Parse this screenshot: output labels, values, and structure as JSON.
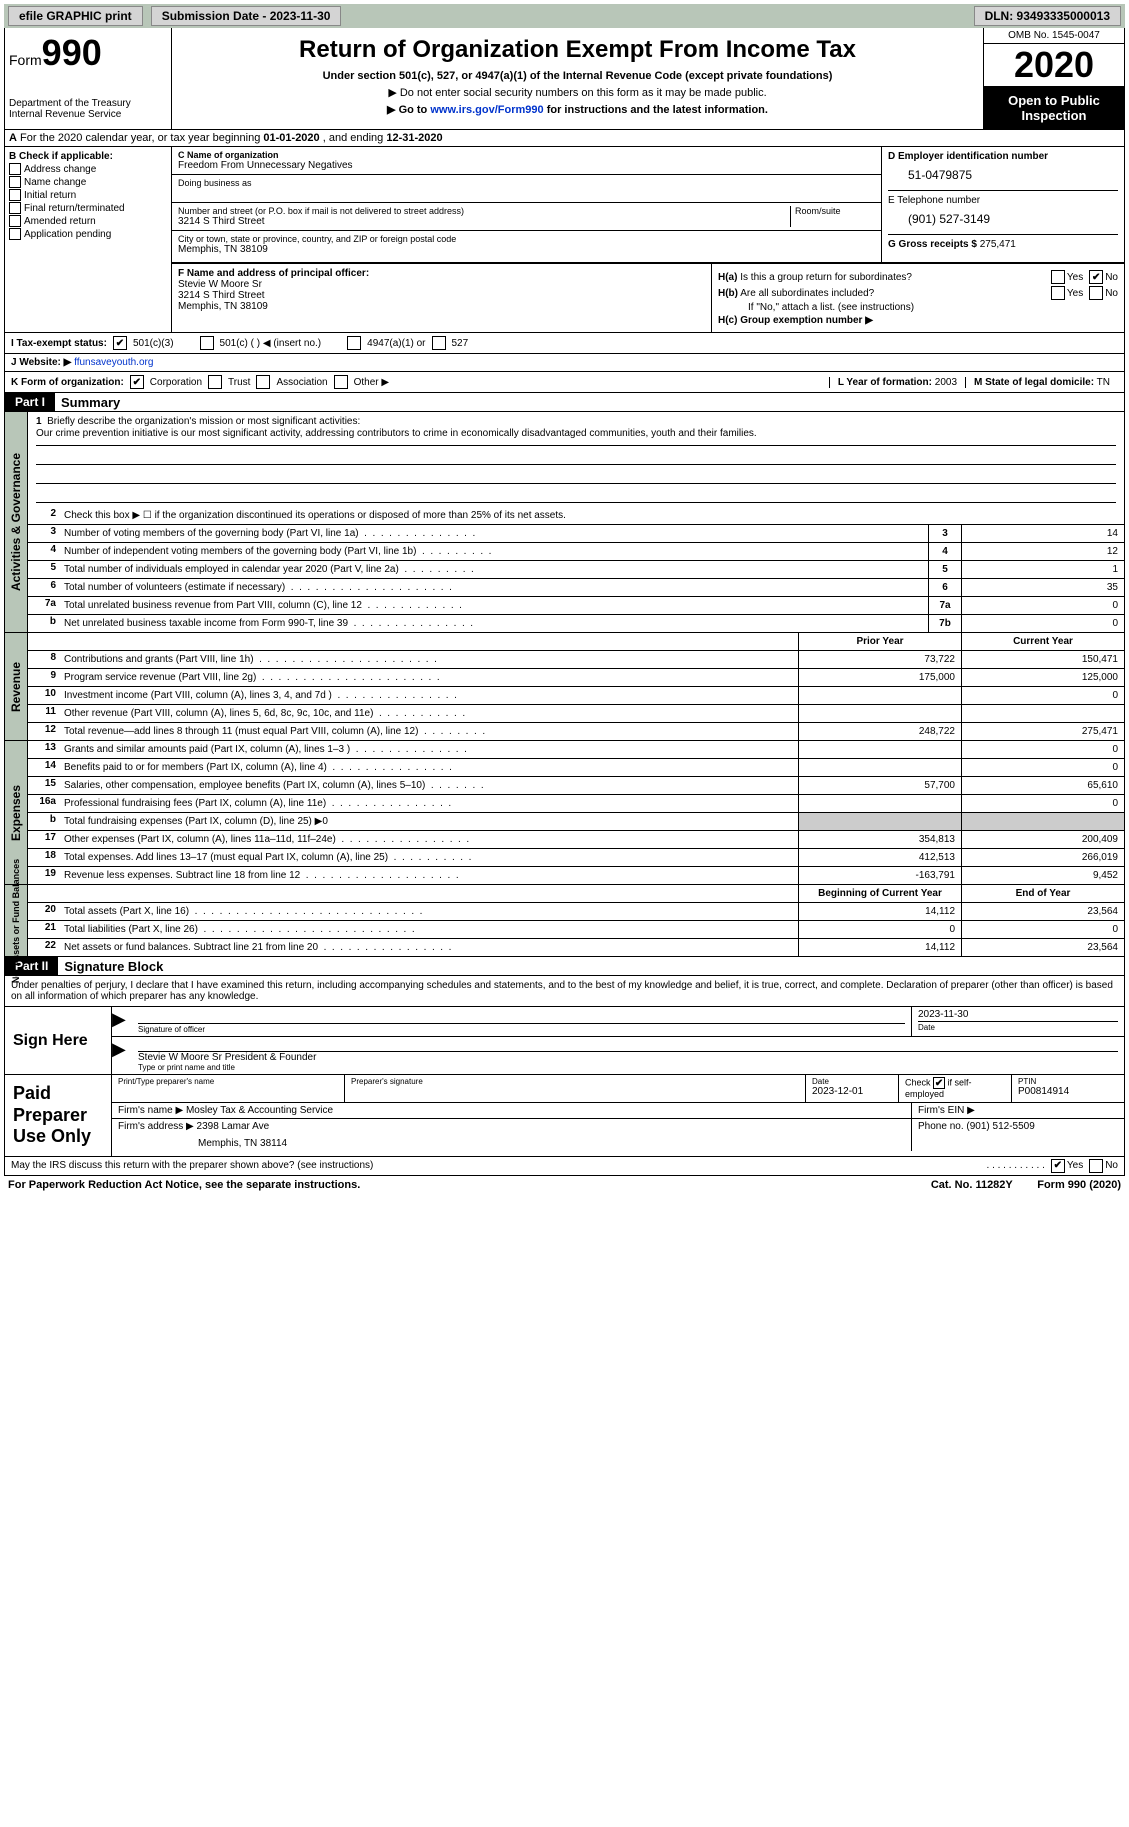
{
  "topbar": {
    "efile": "efile GRAPHIC print",
    "sub_date_label": "Submission Date - 2023-11-30",
    "dln": "DLN: 93493335000013"
  },
  "header": {
    "form_label": "Form",
    "form_num": "990",
    "dept1": "Department of the Treasury",
    "dept2": "Internal Revenue Service",
    "title": "Return of Organization Exempt From Income Tax",
    "sub": "Under section 501(c), 527, or 4947(a)(1) of the Internal Revenue Code (except private foundations)",
    "note1": "▶ Do not enter social security numbers on this form as it may be made public.",
    "note2_pre": "▶ Go to ",
    "note2_link": "www.irs.gov/Form990",
    "note2_post": " for instructions and the latest information.",
    "omb": "OMB No. 1545-0047",
    "year": "2020",
    "open": "Open to Public Inspection"
  },
  "line_a": {
    "pre": "A For the 2020 calendar year, or tax year beginning ",
    "start": "01-01-2020",
    "mid": " , and ending ",
    "end": "12-31-2020"
  },
  "b": {
    "label": "B Check if applicable:",
    "opts": [
      "Address change",
      "Name change",
      "Initial return",
      "Final return/terminated",
      "Amended return",
      "Application pending"
    ]
  },
  "c": {
    "name_label": "C Name of organization",
    "name": "Freedom From Unnecessary Negatives",
    "dba_label": "Doing business as",
    "addr_label": "Number and street (or P.O. box if mail is not delivered to street address)",
    "room_label": "Room/suite",
    "addr": "3214 S Third Street",
    "city_label": "City or town, state or province, country, and ZIP or foreign postal code",
    "city": "Memphis, TN  38109"
  },
  "d": {
    "ein_label": "D Employer identification number",
    "ein": "51-0479875",
    "tel_label": "E Telephone number",
    "tel": "(901) 527-3149",
    "gross_label": "G Gross receipts $",
    "gross": "275,471"
  },
  "f": {
    "label": "F Name and address of principal officer:",
    "name": "Stevie W Moore Sr",
    "addr1": "3214 S Third Street",
    "addr2": "Memphis, TN  38109"
  },
  "h": {
    "a_label": "H(a) Is this a group return for subordinates?",
    "b_label": "H(b) Are all subordinates included?",
    "b_note": "If \"No,\" attach a list. (see instructions)",
    "c_label": "H(c) Group exemption number ▶",
    "yes": "Yes",
    "no": "No"
  },
  "i": {
    "label": "I    Tax-exempt status:",
    "o1": "501(c)(3)",
    "o2": "501(c) (  ) ◀ (insert no.)",
    "o3": "4947(a)(1) or",
    "o4": "527"
  },
  "j": {
    "label": "J   Website: ▶",
    "val": "ffunsaveyouth.org"
  },
  "k": {
    "label": "K Form of organization:",
    "o1": "Corporation",
    "o2": "Trust",
    "o3": "Association",
    "o4": "Other ▶"
  },
  "l": {
    "label": "L Year of formation:",
    "val": "2003"
  },
  "m": {
    "label": "M State of legal domicile:",
    "val": "TN"
  },
  "parts": {
    "p1": "Part I",
    "p1t": "Summary",
    "p2": "Part II",
    "p2t": "Signature Block"
  },
  "mission": {
    "label": "1   Briefly describe the organization's mission or most significant activities:",
    "text": "Our crime prevention initiative is our most significant activity, addressing contributors to crime in economically disadvantaged communities, youth and their families."
  },
  "gov": {
    "l2": "Check this box ▶ ☐ if the organization discontinued its operations or disposed of more than 25% of its net assets.",
    "rows": [
      {
        "n": "3",
        "d": "Number of voting members of the governing body (Part VI, line 1a)",
        "b": "3",
        "v": "14"
      },
      {
        "n": "4",
        "d": "Number of independent voting members of the governing body (Part VI, line 1b)",
        "b": "4",
        "v": "12"
      },
      {
        "n": "5",
        "d": "Total number of individuals employed in calendar year 2020 (Part V, line 2a)",
        "b": "5",
        "v": "1"
      },
      {
        "n": "6",
        "d": "Total number of volunteers (estimate if necessary)",
        "b": "6",
        "v": "35"
      },
      {
        "n": "7a",
        "d": "Total unrelated business revenue from Part VIII, column (C), line 12",
        "b": "7a",
        "v": "0"
      },
      {
        "n": "b",
        "d": "Net unrelated business taxable income from Form 990-T, line 39",
        "b": "7b",
        "v": "0"
      }
    ]
  },
  "rev": {
    "hdr_prior": "Prior Year",
    "hdr_curr": "Current Year",
    "rows": [
      {
        "n": "8",
        "d": "Contributions and grants (Part VIII, line 1h)",
        "p": "73,722",
        "c": "150,471"
      },
      {
        "n": "9",
        "d": "Program service revenue (Part VIII, line 2g)",
        "p": "175,000",
        "c": "125,000"
      },
      {
        "n": "10",
        "d": "Investment income (Part VIII, column (A), lines 3, 4, and 7d )",
        "p": "",
        "c": "0"
      },
      {
        "n": "11",
        "d": "Other revenue (Part VIII, column (A), lines 5, 6d, 8c, 9c, 10c, and 11e)",
        "p": "",
        "c": ""
      },
      {
        "n": "12",
        "d": "Total revenue—add lines 8 through 11 (must equal Part VIII, column (A), line 12)",
        "p": "248,722",
        "c": "275,471"
      }
    ]
  },
  "exp": {
    "rows": [
      {
        "n": "13",
        "d": "Grants and similar amounts paid (Part IX, column (A), lines 1–3 )",
        "p": "",
        "c": "0"
      },
      {
        "n": "14",
        "d": "Benefits paid to or for members (Part IX, column (A), line 4)",
        "p": "",
        "c": "0"
      },
      {
        "n": "15",
        "d": "Salaries, other compensation, employee benefits (Part IX, column (A), lines 5–10)",
        "p": "57,700",
        "c": "65,610"
      },
      {
        "n": "16a",
        "d": "Professional fundraising fees (Part IX, column (A), line 11e)",
        "p": "",
        "c": "0"
      },
      {
        "n": "b",
        "d": "Total fundraising expenses (Part IX, column (D), line 25) ▶0",
        "p": "",
        "c": "",
        "shaded": true
      },
      {
        "n": "17",
        "d": "Other expenses (Part IX, column (A), lines 11a–11d, 11f–24e)",
        "p": "354,813",
        "c": "200,409"
      },
      {
        "n": "18",
        "d": "Total expenses. Add lines 13–17 (must equal Part IX, column (A), line 25)",
        "p": "412,513",
        "c": "266,019"
      },
      {
        "n": "19",
        "d": "Revenue less expenses. Subtract line 18 from line 12",
        "p": "-163,791",
        "c": "9,452"
      }
    ]
  },
  "net": {
    "hdr_beg": "Beginning of Current Year",
    "hdr_end": "End of Year",
    "rows": [
      {
        "n": "20",
        "d": "Total assets (Part X, line 16)",
        "p": "14,112",
        "c": "23,564"
      },
      {
        "n": "21",
        "d": "Total liabilities (Part X, line 26)",
        "p": "0",
        "c": "0"
      },
      {
        "n": "22",
        "d": "Net assets or fund balances. Subtract line 21 from line 20",
        "p": "14,112",
        "c": "23,564"
      }
    ]
  },
  "sides": {
    "gov": "Activities & Governance",
    "rev": "Revenue",
    "exp": "Expenses",
    "net": "Net Assets or Fund Balances"
  },
  "sig": {
    "intro": "Under penalties of perjury, I declare that I have examined this return, including accompanying schedules and statements, and to the best of my knowledge and belief, it is true, correct, and complete. Declaration of preparer (other than officer) is based on all information of which preparer has any knowledge.",
    "sign_here": "Sign Here",
    "sig_officer": "Signature of officer",
    "date": "Date",
    "date_val": "2023-11-30",
    "name": "Stevie W Moore Sr President & Founder",
    "type_name": "Type or print name and title",
    "paid": "Paid Preparer Use Only",
    "pt_name": "Print/Type preparer's name",
    "pp_sig": "Preparer's signature",
    "pp_date": "Date",
    "pp_date_val": "2023-12-01",
    "check_if": "Check ☑ if self-employed",
    "ptin": "PTIN",
    "ptin_val": "P00814914",
    "firm_name_l": "Firm's name ▶",
    "firm_name": "Mosley Tax & Accounting Service",
    "firm_ein": "Firm's EIN ▶",
    "firm_addr_l": "Firm's address ▶",
    "firm_addr": "2398 Lamar Ave",
    "firm_city": "Memphis, TN  38114",
    "phone_l": "Phone no.",
    "phone": "(901) 512-5509",
    "discuss": "May the IRS discuss this return with the preparer shown above? (see instructions)"
  },
  "footer": {
    "pra": "For Paperwork Reduction Act Notice, see the separate instructions.",
    "cat": "Cat. No. 11282Y",
    "form": "Form 990 (2020)"
  }
}
